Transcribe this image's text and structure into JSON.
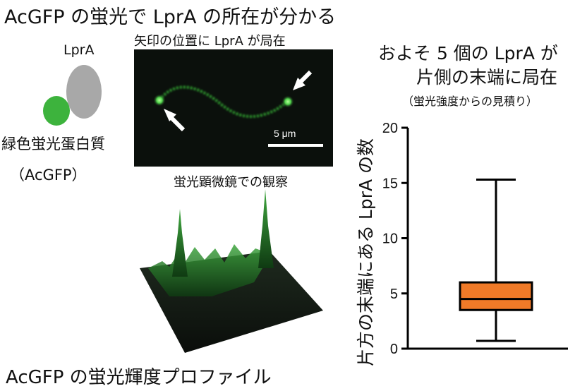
{
  "title": "AcGFP の蛍光で LprA の所在が分かる",
  "protein": {
    "label": "LprA",
    "gfp_name": "緑色蛍光蛋白質",
    "gfp_abbrev": "（AcGFP）",
    "gray": "#a8a8a8",
    "green": "#3db33d"
  },
  "micrograph": {
    "caption": "矢印の位置に LprA が局在",
    "scale_label": "5 μm",
    "observation": "蛍光顕微鏡での観察"
  },
  "profile": {
    "caption": "AcGFP の蛍光輝度プロファイル"
  },
  "right_panel": {
    "title_line1": "およそ 5 個の LprA が",
    "title_line2": "片側の末端に局在",
    "note": "（蛍光強度からの見積り）"
  },
  "chart_data": {
    "type": "box",
    "ylabel": "片方の末端にある LprA の数",
    "ylim": [
      0,
      20
    ],
    "yticks": [
      0,
      5,
      10,
      15,
      20
    ],
    "box": {
      "min": 0.7,
      "q1": 3.5,
      "median": 4.5,
      "q3": 6.0,
      "max": 15.3
    },
    "box_color": "#f07a28"
  }
}
